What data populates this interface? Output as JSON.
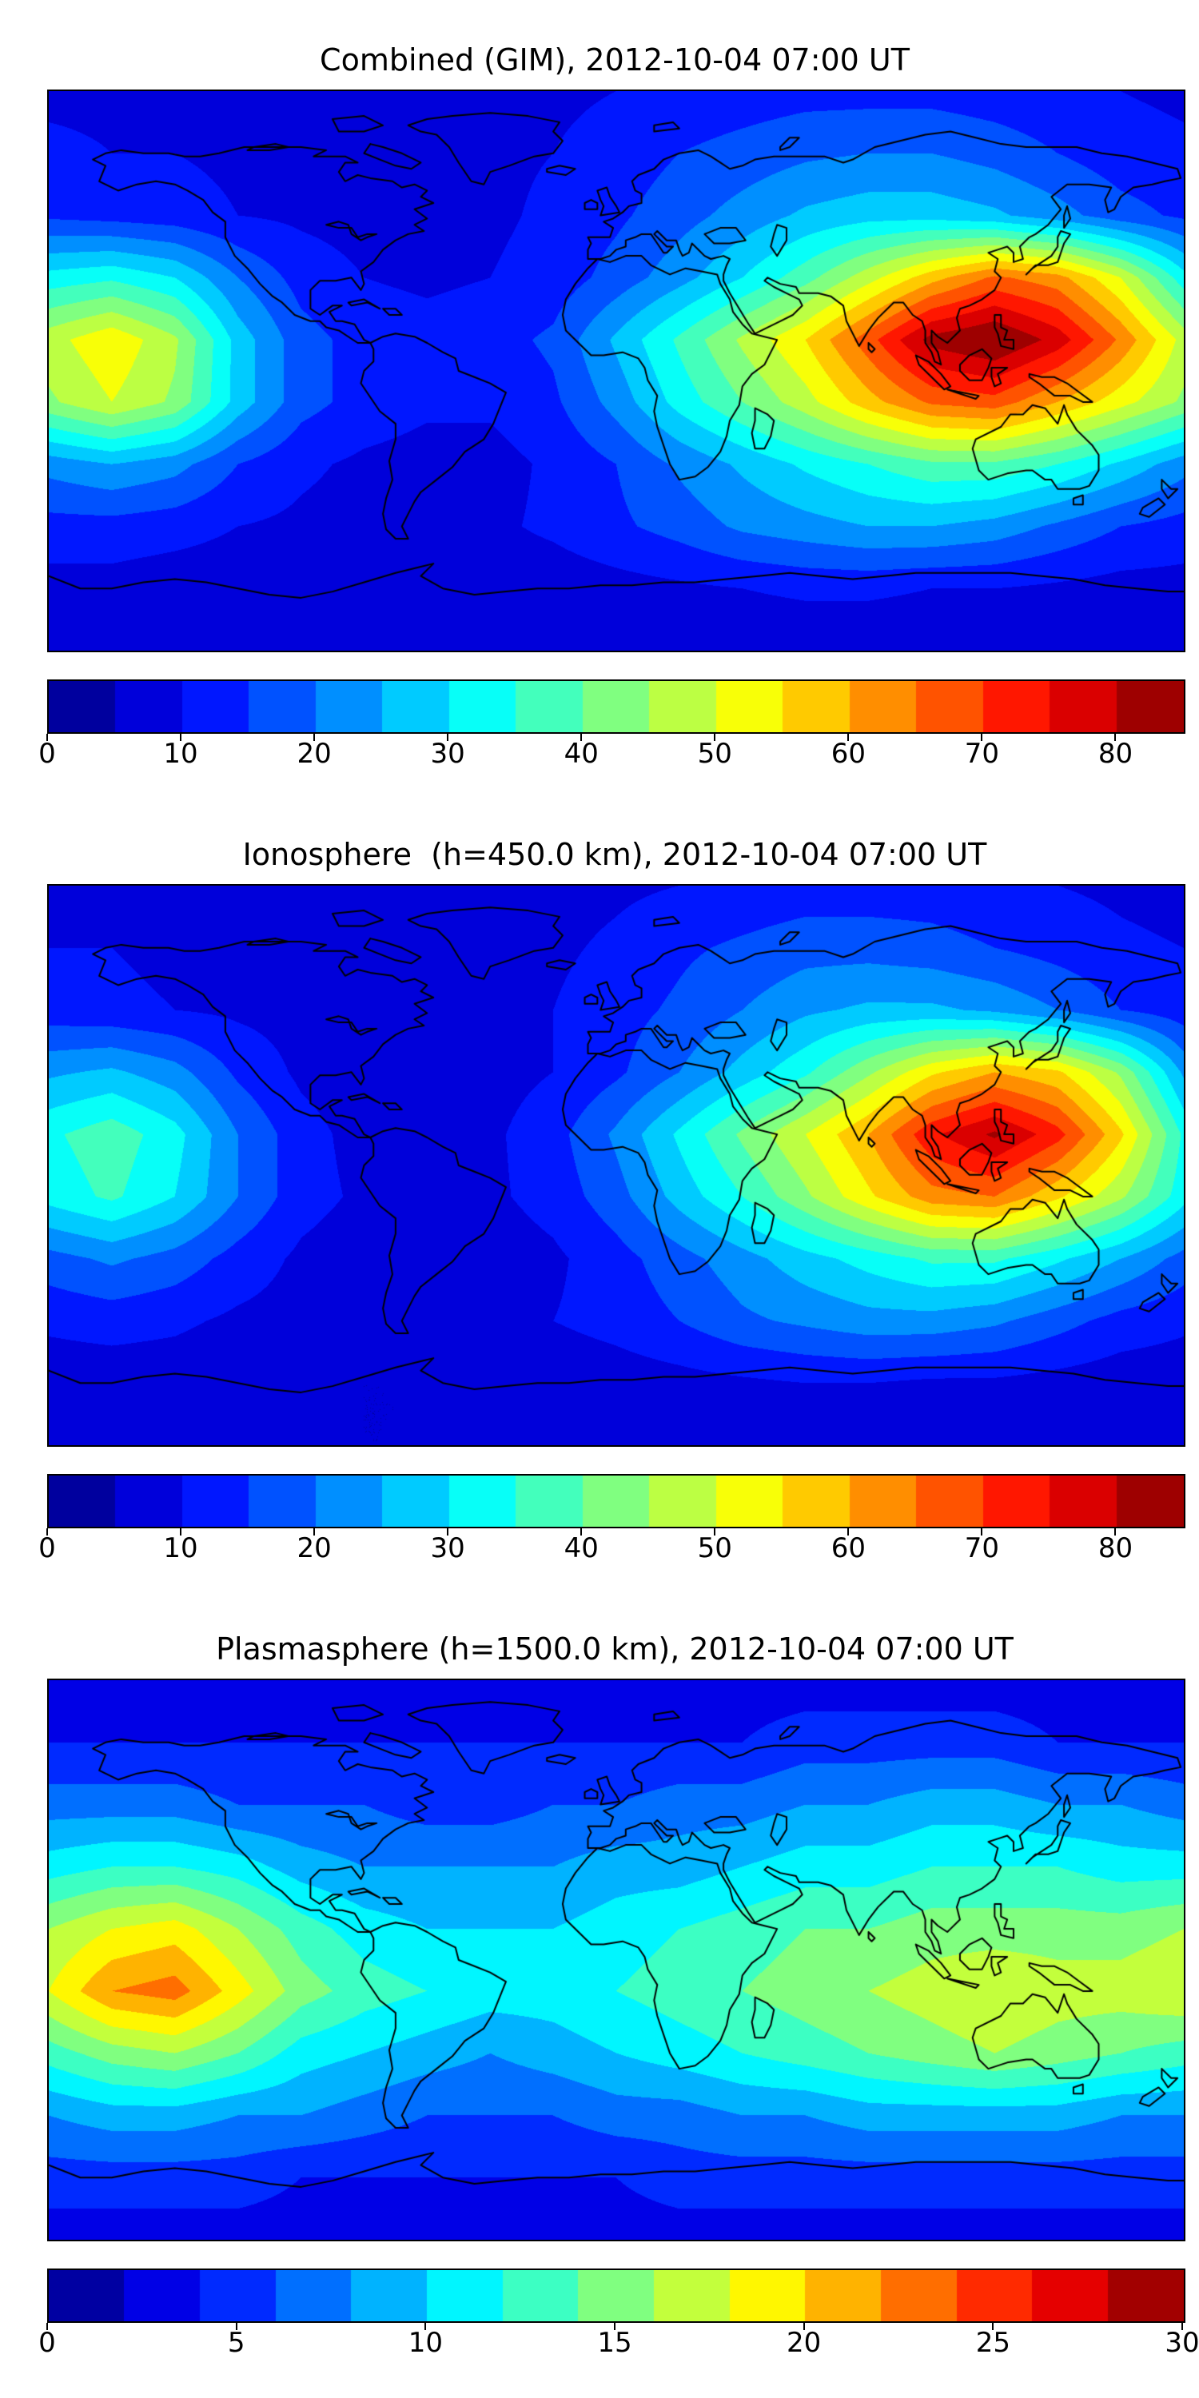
{
  "figure": {
    "background": "#ffffff",
    "coastline_color": "#000000"
  },
  "chart_data": [
    {
      "type": "heatmap",
      "title": "Combined (GIM), 2012-10-04 07:00 UT",
      "projection": "equirectangular",
      "colormap": "jet",
      "lon_range": [
        -180,
        180
      ],
      "lat_range": [
        -90,
        90
      ],
      "vmin": 0,
      "vmax": 85,
      "level_step": 5,
      "colorbar_ticks": [
        0,
        10,
        20,
        30,
        40,
        50,
        60,
        70,
        80
      ],
      "lats": [
        90,
        70,
        50,
        30,
        10,
        -10,
        -30,
        -50,
        -70,
        -90
      ],
      "lons": [
        -180,
        -160,
        -140,
        -120,
        -100,
        -80,
        -60,
        -40,
        -20,
        0,
        20,
        40,
        60,
        80,
        100,
        120,
        140,
        160,
        180
      ],
      "values": [
        [
          9,
          9,
          9,
          9,
          9,
          9,
          9,
          9,
          9,
          10,
          11,
          12,
          13,
          13,
          13,
          12,
          11,
          10,
          9
        ],
        [
          11,
          10,
          10,
          9,
          9,
          8,
          8,
          9,
          10,
          12,
          15,
          17,
          19,
          20,
          20,
          18,
          15,
          12,
          11
        ],
        [
          14,
          13,
          12,
          10,
          9,
          8,
          8,
          9,
          11,
          14,
          18,
          22,
          26,
          28,
          28,
          26,
          22,
          17,
          14
        ],
        [
          32,
          34,
          30,
          20,
          13,
          10,
          9,
          10,
          12,
          17,
          23,
          30,
          38,
          48,
          58,
          66,
          62,
          50,
          32
        ],
        [
          48,
          54,
          46,
          28,
          17,
          13,
          12,
          13,
          16,
          26,
          36,
          46,
          55,
          68,
          82,
          86,
          78,
          64,
          48
        ],
        [
          44,
          50,
          44,
          28,
          17,
          13,
          11,
          11,
          14,
          22,
          32,
          40,
          48,
          58,
          66,
          68,
          60,
          52,
          44
        ],
        [
          22,
          25,
          22,
          15,
          11,
          9,
          8,
          8,
          11,
          15,
          21,
          26,
          31,
          35,
          39,
          39,
          35,
          29,
          22
        ],
        [
          13,
          13,
          12,
          10,
          9,
          8,
          7,
          9,
          11,
          14,
          17,
          21,
          23,
          25,
          25,
          23,
          19,
          15,
          13
        ],
        [
          8,
          8,
          7,
          7,
          6,
          6,
          6,
          7,
          7,
          8,
          9,
          10,
          11,
          11,
          10,
          10,
          9,
          8,
          8
        ],
        [
          6,
          6,
          6,
          6,
          6,
          6,
          6,
          6,
          6,
          6,
          6,
          6,
          6,
          6,
          6,
          6,
          6,
          6,
          6
        ]
      ]
    },
    {
      "type": "heatmap",
      "title": "Ionosphere  (h=450.0 km), 2012-10-04 07:00 UT",
      "projection": "equirectangular",
      "colormap": "jet",
      "lon_range": [
        -180,
        180
      ],
      "lat_range": [
        -90,
        90
      ],
      "vmin": 0,
      "vmax": 85,
      "level_step": 5,
      "colorbar_ticks": [
        0,
        10,
        20,
        30,
        40,
        50,
        60,
        70,
        80
      ],
      "lats": [
        90,
        70,
        50,
        30,
        10,
        -10,
        -30,
        -50,
        -70,
        -90
      ],
      "lons": [
        -180,
        -160,
        -140,
        -120,
        -100,
        -80,
        -60,
        -40,
        -20,
        0,
        20,
        40,
        60,
        80,
        100,
        120,
        140,
        160,
        180
      ],
      "values": [
        [
          8,
          8,
          8,
          8,
          8,
          7,
          7,
          8,
          8,
          9,
          10,
          11,
          12,
          12,
          12,
          11,
          10,
          9,
          8
        ],
        [
          10,
          10,
          9,
          9,
          8,
          8,
          8,
          8,
          9,
          11,
          14,
          16,
          18,
          18,
          17,
          15,
          13,
          11,
          10
        ],
        [
          12,
          11,
          10,
          9,
          8,
          7,
          7,
          8,
          10,
          13,
          16,
          20,
          24,
          26,
          26,
          24,
          20,
          15,
          12
        ],
        [
          24,
          26,
          22,
          14,
          9,
          7,
          6,
          8,
          10,
          14,
          20,
          27,
          34,
          44,
          54,
          60,
          56,
          44,
          24
        ],
        [
          34,
          38,
          32,
          20,
          12,
          8,
          7,
          9,
          13,
          21,
          31,
          41,
          50,
          60,
          74,
          81,
          72,
          56,
          34
        ],
        [
          32,
          36,
          30,
          20,
          12,
          9,
          8,
          9,
          12,
          18,
          27,
          35,
          44,
          54,
          63,
          65,
          56,
          46,
          32
        ],
        [
          18,
          21,
          18,
          13,
          9,
          7,
          7,
          7,
          9,
          13,
          18,
          23,
          28,
          32,
          36,
          36,
          31,
          25,
          18
        ],
        [
          11,
          12,
          11,
          9,
          8,
          7,
          6,
          8,
          10,
          12,
          15,
          19,
          21,
          23,
          23,
          21,
          17,
          13,
          11
        ],
        [
          7,
          7,
          7,
          6,
          6,
          5,
          5,
          6,
          6,
          7,
          8,
          9,
          10,
          10,
          9,
          9,
          8,
          7,
          7
        ],
        [
          5,
          5,
          5,
          5,
          5,
          5,
          5,
          5,
          5,
          5,
          5,
          5,
          5,
          5,
          5,
          5,
          5,
          5,
          5
        ]
      ]
    },
    {
      "type": "heatmap",
      "title": "Plasmasphere (h=1500.0 km), 2012-10-04 07:00 UT",
      "projection": "equirectangular",
      "colormap": "jet",
      "lon_range": [
        -180,
        180
      ],
      "lat_range": [
        -90,
        90
      ],
      "vmin": 0,
      "vmax": 30,
      "level_step": 2,
      "colorbar_ticks": [
        0,
        5,
        10,
        15,
        20,
        25,
        30
      ],
      "lats": [
        90,
        70,
        50,
        30,
        10,
        -10,
        -30,
        -50,
        -70,
        -90
      ],
      "lons": [
        -180,
        -160,
        -140,
        -120,
        -100,
        -80,
        -60,
        -40,
        -20,
        0,
        20,
        40,
        60,
        80,
        100,
        120,
        140,
        160,
        180
      ],
      "values": [
        [
          3,
          3,
          3,
          3,
          3,
          3,
          3,
          3,
          3,
          3,
          3,
          3,
          3,
          3,
          3,
          3,
          3,
          3,
          3
        ],
        [
          4,
          4,
          4,
          4,
          4,
          4,
          4,
          4,
          4,
          4,
          4,
          4,
          5,
          5,
          5,
          5,
          4,
          4,
          4
        ],
        [
          7,
          7,
          7,
          6,
          6,
          6,
          5,
          5,
          6,
          6,
          7,
          7,
          8,
          8,
          9,
          9,
          8,
          8,
          7
        ],
        [
          11,
          12,
          12,
          11,
          9,
          8,
          8,
          8,
          8,
          9,
          9,
          10,
          11,
          11,
          12,
          12,
          12,
          11,
          11
        ],
        [
          16,
          18,
          19,
          16,
          13,
          11,
          10,
          10,
          10,
          11,
          12,
          13,
          14,
          14,
          15,
          15,
          15,
          15,
          16
        ],
        [
          18,
          22,
          23,
          19,
          15,
          13,
          12,
          11,
          11,
          12,
          13,
          14,
          15,
          16,
          17,
          18,
          17,
          17,
          18
        ],
        [
          13,
          15,
          16,
          14,
          11,
          10,
          9,
          8,
          9,
          10,
          11,
          12,
          13,
          14,
          15,
          16,
          15,
          14,
          13
        ],
        [
          8,
          9,
          9,
          8,
          8,
          7,
          6,
          6,
          6,
          7,
          7,
          8,
          8,
          9,
          9,
          9,
          9,
          8,
          8
        ],
        [
          5,
          5,
          5,
          5,
          4,
          4,
          4,
          4,
          4,
          4,
          5,
          5,
          5,
          5,
          5,
          5,
          5,
          5,
          5
        ],
        [
          3,
          3,
          3,
          3,
          3,
          3,
          3,
          3,
          3,
          3,
          3,
          3,
          3,
          3,
          3,
          3,
          3,
          3,
          3
        ]
      ]
    }
  ]
}
